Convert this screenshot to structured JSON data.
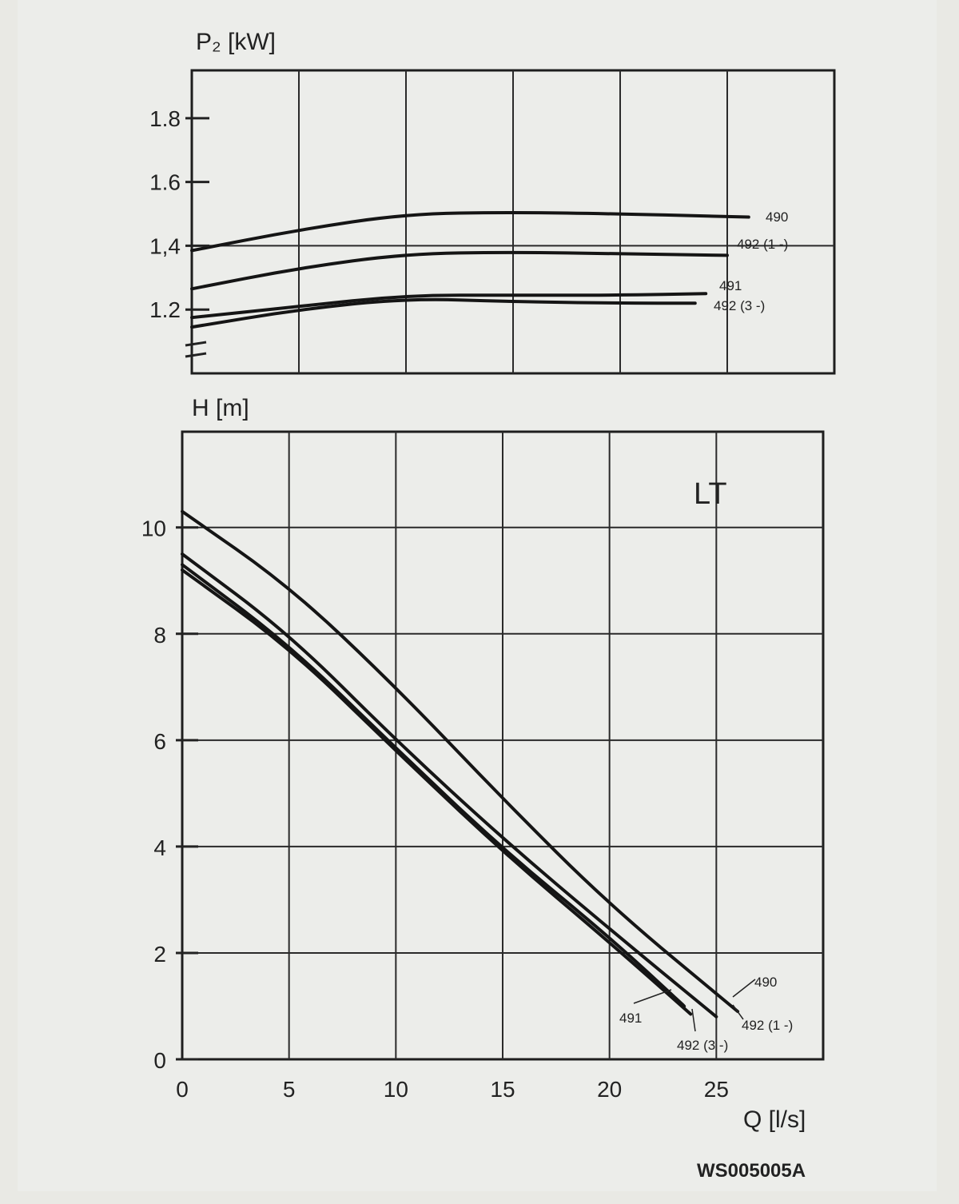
{
  "chart_data": [
    {
      "type": "line",
      "ylabel": "P₂ [kW]",
      "xlim": [
        0,
        30
      ],
      "ylim": [
        1.0,
        1.95
      ],
      "yticks": [
        "1.8",
        "1.6",
        "1,4",
        "1.2"
      ],
      "ytick_values": [
        1.8,
        1.6,
        1.4,
        1.2
      ],
      "grid": true,
      "series": [
        {
          "name": "490",
          "x": [
            0,
            5,
            10,
            15,
            20,
            26
          ],
          "y": [
            1.385,
            1.45,
            1.5,
            1.505,
            1.5,
            1.49
          ]
        },
        {
          "name": "492 (1 -)",
          "x": [
            0,
            5,
            10,
            15,
            20,
            25
          ],
          "y": [
            1.265,
            1.33,
            1.375,
            1.38,
            1.375,
            1.37
          ]
        },
        {
          "name": "491",
          "x": [
            0,
            5,
            10,
            15,
            20,
            24
          ],
          "y": [
            1.175,
            1.21,
            1.245,
            1.245,
            1.245,
            1.25
          ]
        },
        {
          "name": "492 (3 -)",
          "x": [
            0,
            5,
            10,
            15,
            20,
            23.5
          ],
          "y": [
            1.145,
            1.2,
            1.235,
            1.225,
            1.22,
            1.22
          ]
        }
      ]
    },
    {
      "type": "line",
      "title": "LT",
      "xlabel": "Q [l/s]",
      "ylabel": "H [m]",
      "xlim": [
        0,
        30
      ],
      "ylim": [
        0,
        11.8
      ],
      "xticks": [
        "0",
        "5",
        "10",
        "15",
        "20",
        "25"
      ],
      "xtick_values": [
        0,
        5,
        10,
        15,
        20,
        25
      ],
      "yticks": [
        "10",
        "8",
        "6",
        "4",
        "2",
        "0"
      ],
      "ytick_values": [
        10,
        8,
        6,
        4,
        2,
        0
      ],
      "grid": true,
      "series": [
        {
          "name": "490",
          "x": [
            0,
            5,
            10,
            15,
            20,
            26
          ],
          "y": [
            10.3,
            8.9,
            7.0,
            4.9,
            2.9,
            0.9
          ]
        },
        {
          "name": "492 (1 -)",
          "x": [
            0,
            5,
            10,
            15,
            20,
            25
          ],
          "y": [
            9.5,
            8.0,
            6.0,
            4.15,
            2.45,
            0.8
          ]
        },
        {
          "name": "491",
          "x": [
            0,
            5,
            10,
            15,
            20,
            23.5
          ],
          "y": [
            9.3,
            7.8,
            5.85,
            3.95,
            2.3,
            1.0
          ]
        },
        {
          "name": "492 (3 -)",
          "x": [
            0,
            5,
            10,
            15,
            20,
            23.8
          ],
          "y": [
            9.2,
            7.75,
            5.8,
            3.9,
            2.2,
            0.85
          ]
        }
      ]
    }
  ],
  "labels": {
    "top_490": "490",
    "top_492_1": "492 (1 -)",
    "top_491": "491",
    "top_492_3": "492 (3 -)",
    "bot_490": "490",
    "bot_491": "491",
    "bot_492_1": "492 (1 -)",
    "bot_492_3": "492 (3 -)"
  },
  "figure_code": "WS005005A"
}
